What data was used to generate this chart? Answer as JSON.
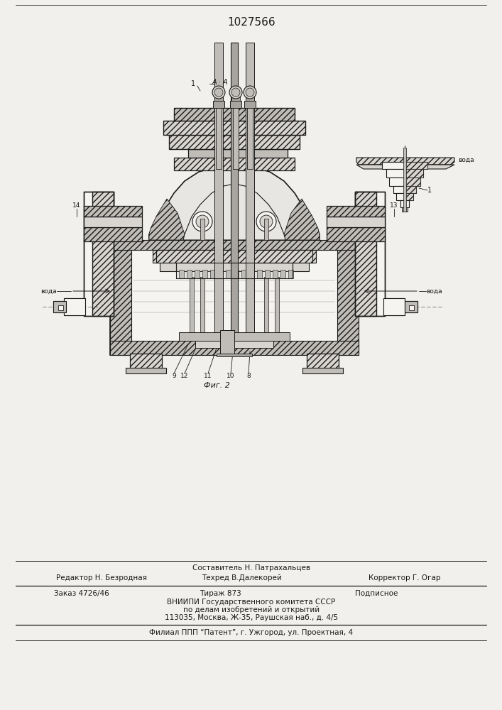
{
  "patent_number": "1027566",
  "bg_color": "#f2f0ed",
  "line_color": "#1a1a1a",
  "fig_width": 7.07,
  "fig_height": 10.0,
  "dpi": 100,
  "footer": {
    "line0": "Составитель Н. Патрахальцев",
    "editor": "Редактор Н. Безродная",
    "tech": "Техред В.Далекорей",
    "corrector": "Корректор Г. Огар",
    "order": "Заказ 4726/46",
    "tirazh": "Тираж 873",
    "podpisnoe": "Подписное",
    "vnipi": "ВНИИПИ Государственного комитета СССР",
    "po_delam": "по делам изобретений и открытий",
    "address": "113035, Москва, Ж-35, Раушская наб., д. 4/5",
    "filial": "Филиал ППП “Патент”, г. Ужгород, ул. Проектная, 4"
  }
}
